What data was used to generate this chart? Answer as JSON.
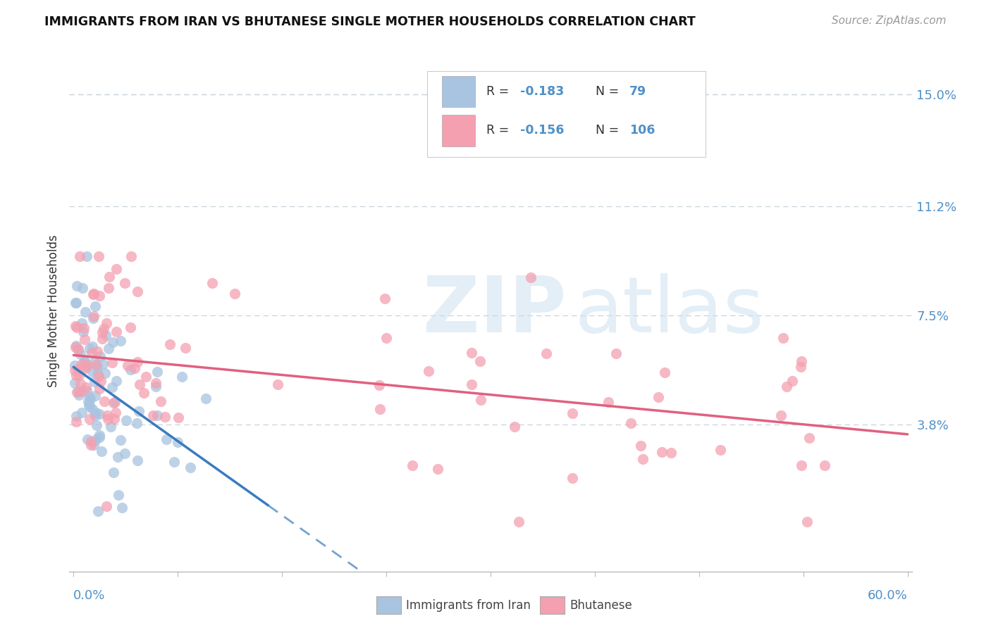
{
  "title": "IMMIGRANTS FROM IRAN VS BHUTANESE SINGLE MOTHER HOUSEHOLDS CORRELATION CHART",
  "source": "Source: ZipAtlas.com",
  "ylabel": "Single Mother Households",
  "yticks": [
    "15.0%",
    "11.2%",
    "7.5%",
    "3.8%"
  ],
  "ytick_vals": [
    0.15,
    0.112,
    0.075,
    0.038
  ],
  "xmin": 0.0,
  "xmax": 0.6,
  "ymin": -0.012,
  "ymax": 0.165,
  "color_iran": "#a8c4e0",
  "color_bhutan": "#f4a0b0",
  "color_iran_line": "#3a7bbf",
  "color_bhutan_line": "#e06080",
  "color_axis_labels": "#5090c8",
  "color_grid": "#c8d4dc",
  "legend_items": [
    {
      "label": "R = ",
      "r_val": "-0.183",
      "n_label": "N = ",
      "n_val": " 79",
      "color": "#a8c4e0"
    },
    {
      "label": "R = ",
      "r_val": "-0.156",
      "n_label": "N = ",
      "n_val": "106",
      "color": "#f4a0b0"
    }
  ],
  "bottom_legend": [
    {
      "label": "Immigrants from Iran",
      "color": "#a8c4e0"
    },
    {
      "label": "Bhutanese",
      "color": "#f4a0b0"
    }
  ]
}
